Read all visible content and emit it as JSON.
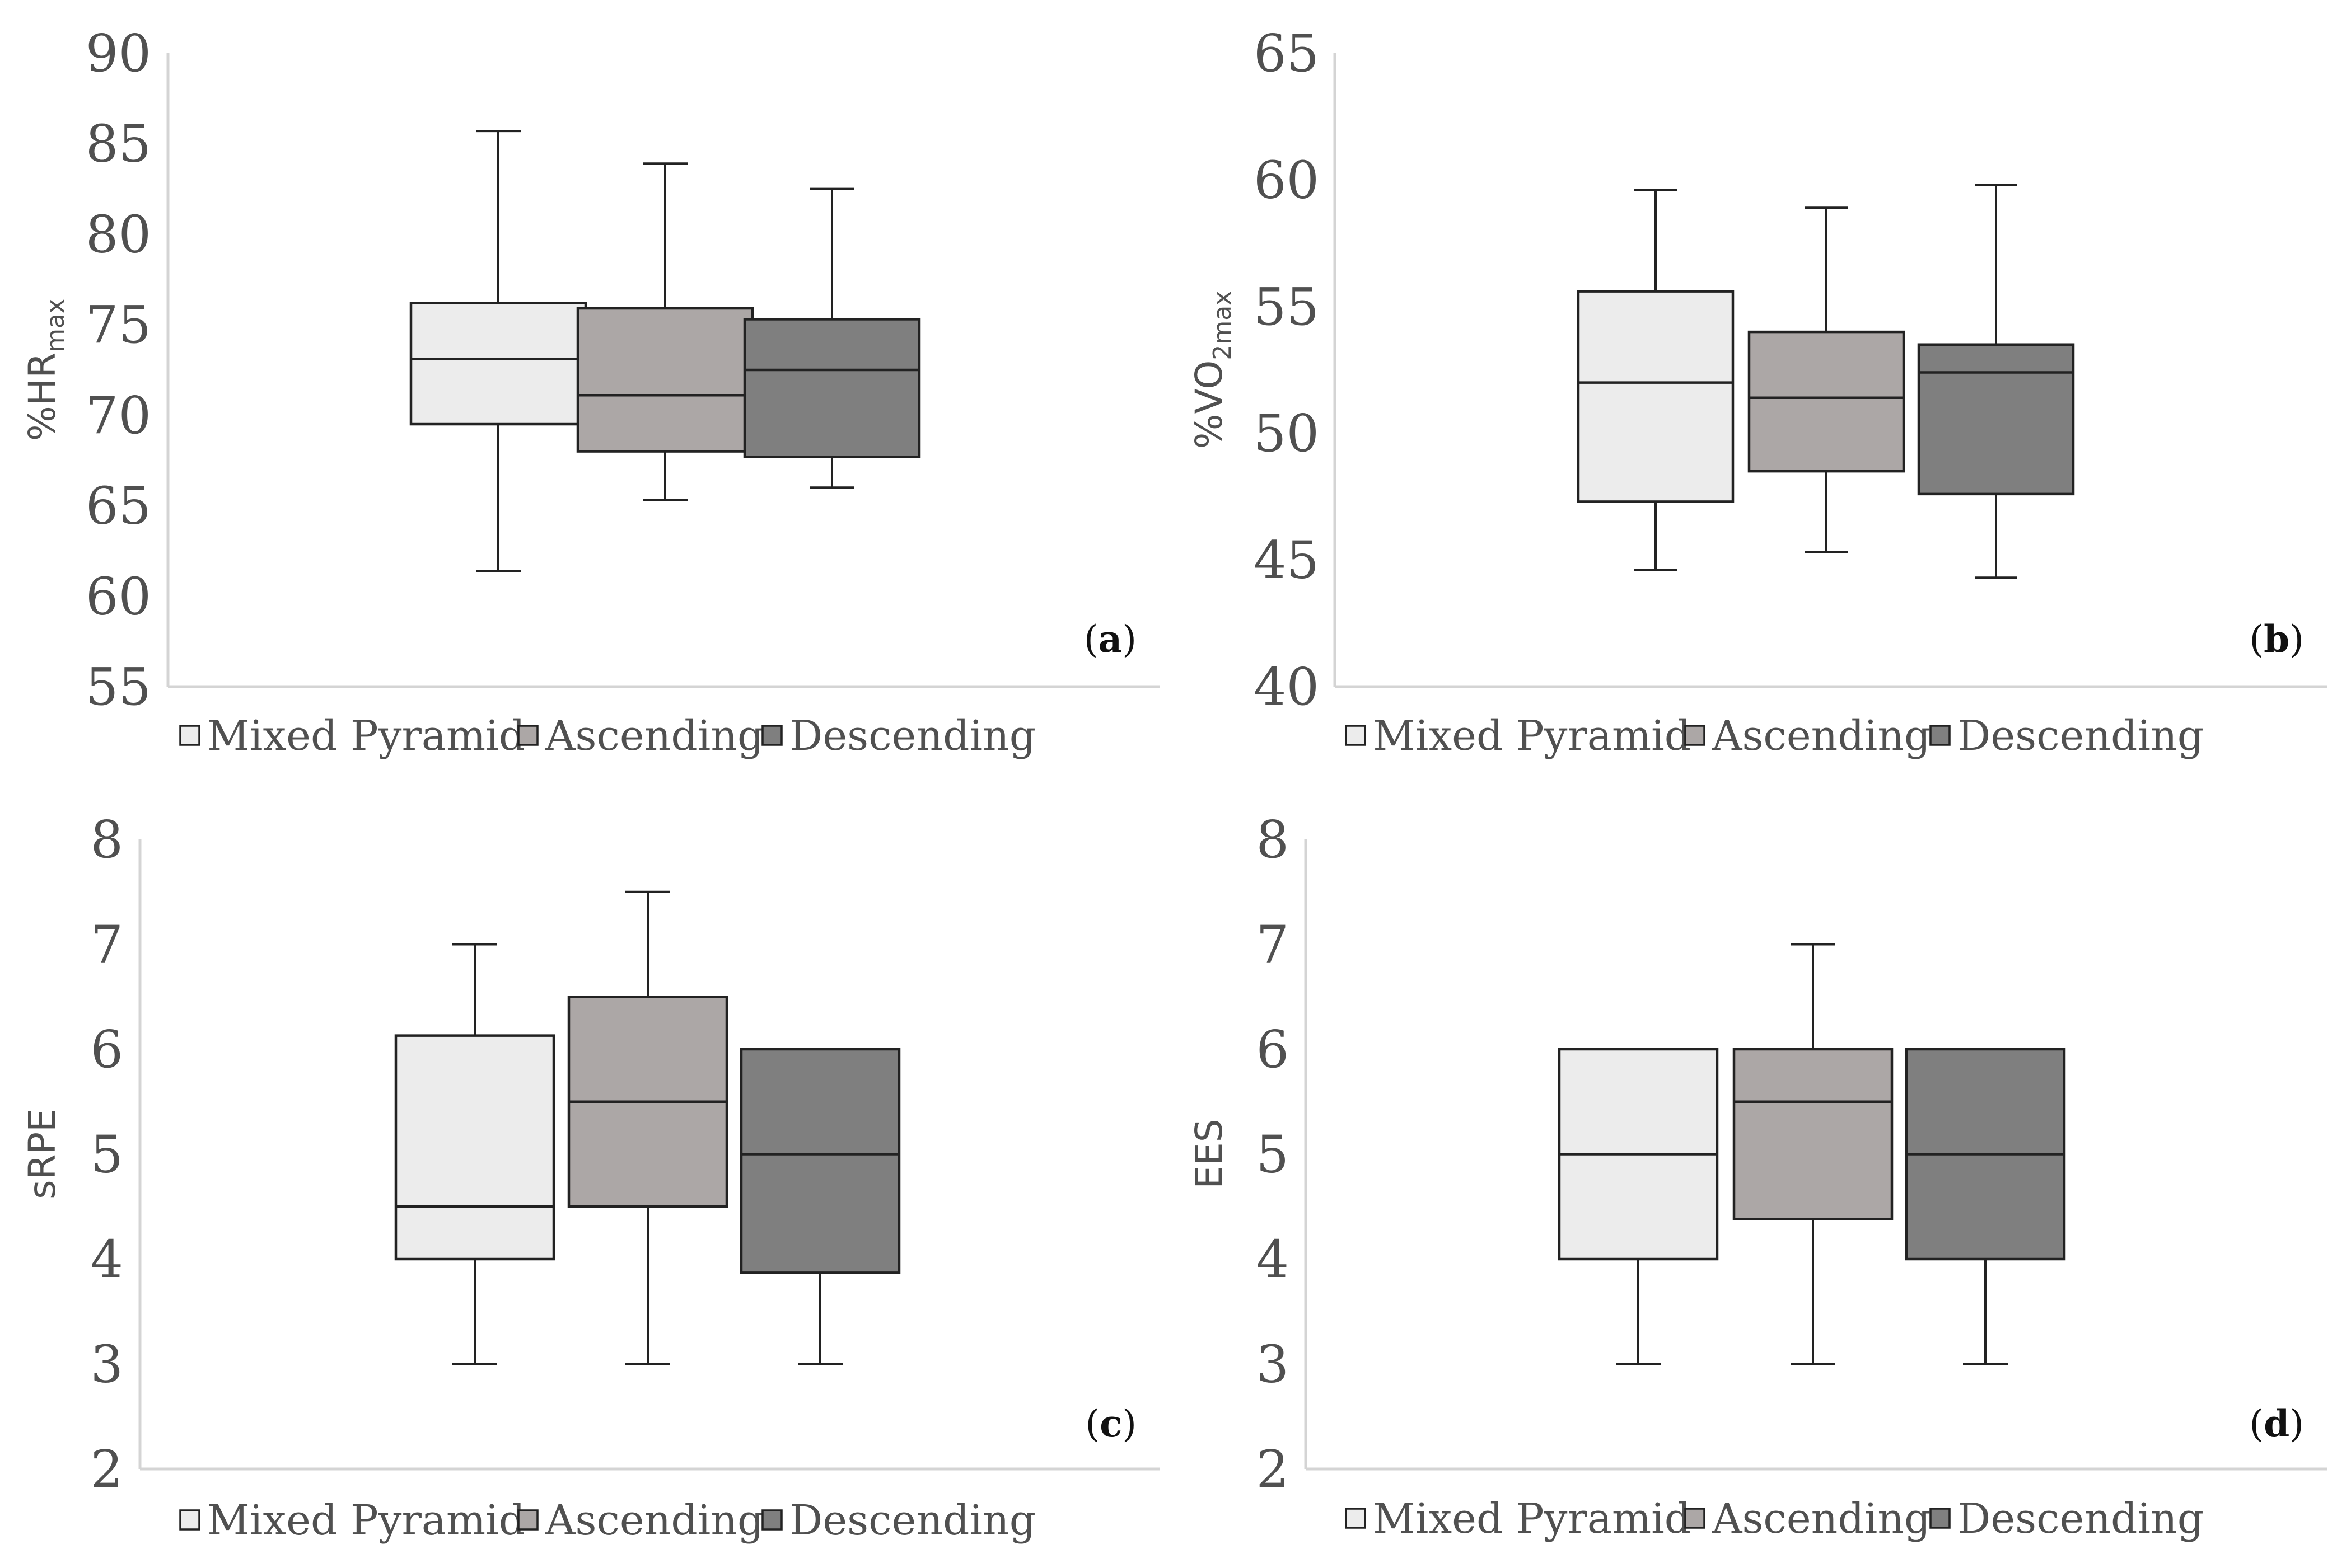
{
  "chart_data": [
    {
      "type": "box",
      "panel_label": "a",
      "ylabel": "%HR",
      "ylabel_subscript": "max",
      "ylim": [
        55,
        90
      ],
      "yticks": [
        55,
        60,
        65,
        70,
        75,
        80,
        85,
        90
      ],
      "legend": [
        "Mixed Pyramid",
        "Ascending",
        "Descending"
      ],
      "colors": [
        "#ececec",
        "#aca7a6",
        "#7f7f7f"
      ],
      "series": [
        {
          "name": "Mixed Pyramid",
          "min": 61.4,
          "q1": 69.5,
          "median": 73.1,
          "q3": 76.2,
          "max": 85.7
        },
        {
          "name": "Ascending",
          "min": 65.3,
          "q1": 68.0,
          "median": 71.1,
          "q3": 75.9,
          "max": 83.9
        },
        {
          "name": "Descending",
          "min": 66.0,
          "q1": 67.7,
          "median": 72.5,
          "q3": 75.3,
          "max": 82.5
        }
      ]
    },
    {
      "type": "box",
      "panel_label": "b",
      "ylabel": "%VO",
      "ylabel_subscript": "2max",
      "ylim": [
        40,
        65
      ],
      "yticks": [
        40,
        45,
        50,
        55,
        60,
        65
      ],
      "legend": [
        "Mixed Pyramid",
        "Ascending",
        "Descending"
      ],
      "colors": [
        "#ececec",
        "#aca7a6",
        "#7f7f7f"
      ],
      "series": [
        {
          "name": "Mixed Pyramid",
          "min": 44.6,
          "q1": 47.3,
          "median": 52.0,
          "q3": 55.6,
          "max": 59.6
        },
        {
          "name": "Ascending",
          "min": 45.3,
          "q1": 48.5,
          "median": 51.4,
          "q3": 54.0,
          "max": 58.9
        },
        {
          "name": "Descending",
          "min": 44.3,
          "q1": 47.6,
          "median": 52.4,
          "q3": 53.5,
          "max": 59.8
        }
      ]
    },
    {
      "type": "box",
      "panel_label": "c",
      "ylabel": "sRPE",
      "ylabel_subscript": "",
      "ylim": [
        2,
        8
      ],
      "yticks": [
        2,
        3,
        4,
        5,
        6,
        7,
        8
      ],
      "legend": [
        "Mixed Pyramid",
        "Ascending",
        "Descending"
      ],
      "colors": [
        "#ececec",
        "#aca7a6",
        "#7f7f7f"
      ],
      "series": [
        {
          "name": "Mixed Pyramid",
          "min": 3.0,
          "q1": 4.0,
          "median": 4.5,
          "q3": 6.13,
          "max": 7.0
        },
        {
          "name": "Ascending",
          "min": 3.0,
          "q1": 4.5,
          "median": 5.5,
          "q3": 6.5,
          "max": 7.5
        },
        {
          "name": "Descending",
          "min": 3.0,
          "q1": 3.87,
          "median": 5.0,
          "q3": 6.0,
          "max": 6.0
        }
      ]
    },
    {
      "type": "box",
      "panel_label": "d",
      "ylabel": "EES",
      "ylabel_subscript": "",
      "ylim": [
        2,
        8
      ],
      "yticks": [
        2,
        3,
        4,
        5,
        6,
        7,
        8
      ],
      "legend": [
        "Mixed Pyramid",
        "Ascending",
        "Descending"
      ],
      "colors": [
        "#ececec",
        "#aca7a6",
        "#7f7f7f"
      ],
      "series": [
        {
          "name": "Mixed Pyramid",
          "min": 3.0,
          "q1": 4.0,
          "median": 5.0,
          "q3": 6.0,
          "max": 6.0
        },
        {
          "name": "Ascending",
          "min": 3.0,
          "q1": 4.38,
          "median": 5.5,
          "q3": 6.0,
          "max": 7.0
        },
        {
          "name": "Descending",
          "min": 3.0,
          "q1": 4.0,
          "median": 5.0,
          "q3": 6.0,
          "max": 6.0
        }
      ]
    }
  ]
}
